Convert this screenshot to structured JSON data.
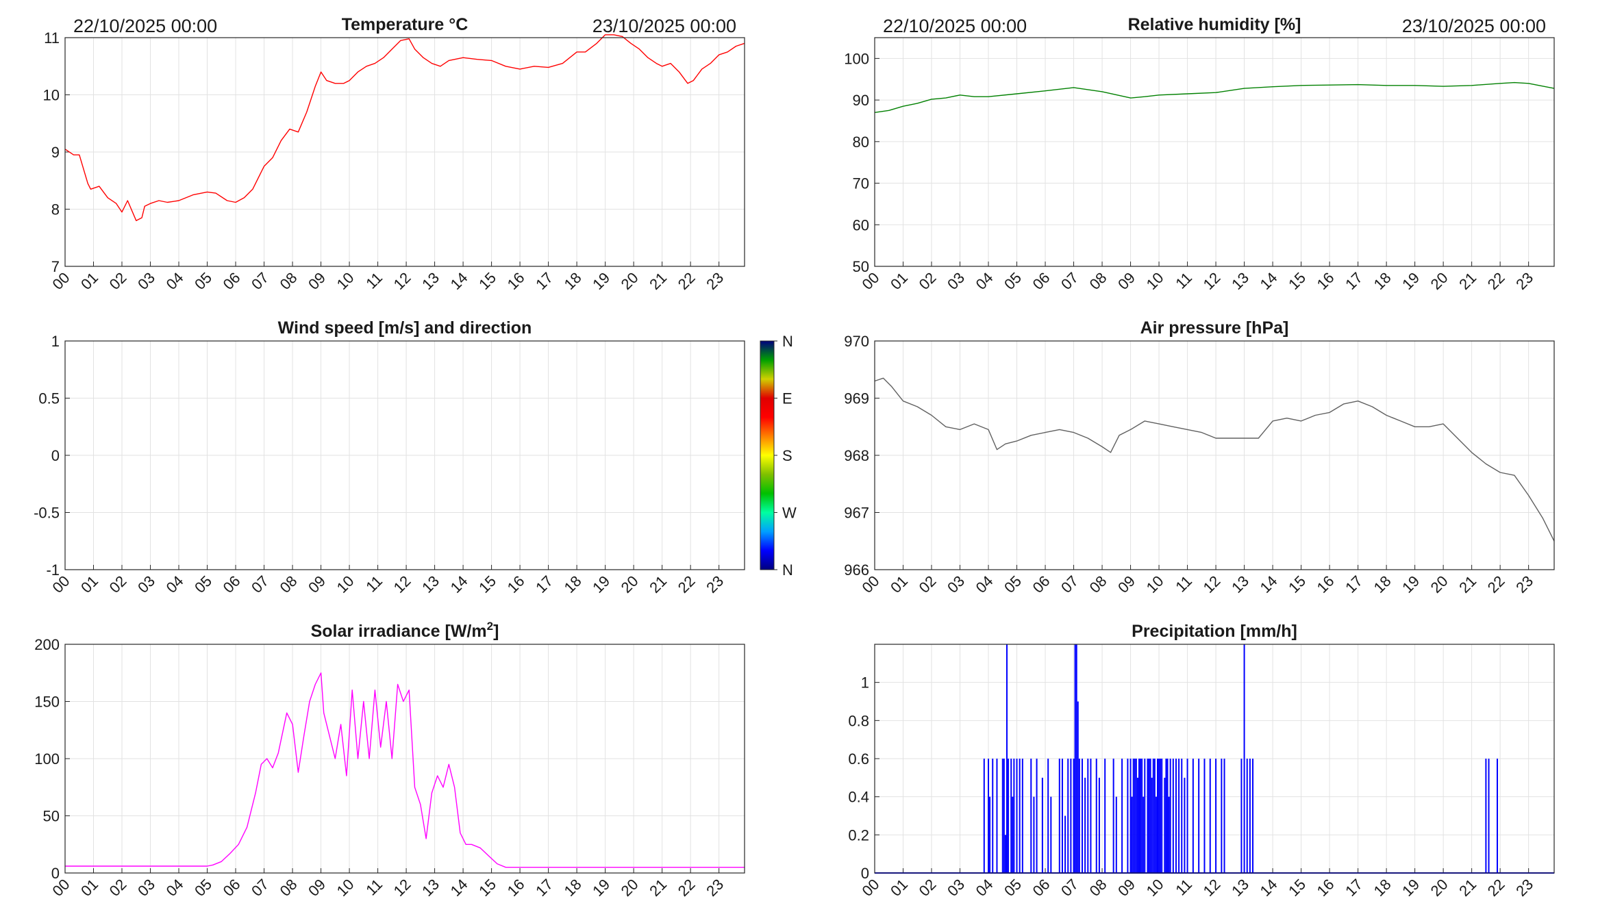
{
  "chart_data": [
    {
      "id": "temperature",
      "type": "line",
      "title": "Temperature °C",
      "date_start": "22/10/2025 00:00",
      "date_end": "23/10/2025 00:00",
      "color": "#ff0000",
      "ylim": [
        7,
        11
      ],
      "yticks": [
        "7",
        "8",
        "9",
        "10",
        "11"
      ],
      "xlim": [
        0,
        23.9
      ],
      "xticks": [
        "00",
        "01",
        "02",
        "03",
        "04",
        "05",
        "06",
        "07",
        "08",
        "09",
        "10",
        "11",
        "12",
        "13",
        "14",
        "15",
        "16",
        "17",
        "18",
        "19",
        "20",
        "21",
        "22",
        "23"
      ],
      "x": [
        0,
        0.3,
        0.5,
        0.8,
        0.9,
        1.2,
        1.5,
        1.8,
        2.0,
        2.2,
        2.5,
        2.7,
        2.8,
        3.0,
        3.3,
        3.6,
        4.0,
        4.5,
        5.0,
        5.3,
        5.7,
        6.0,
        6.3,
        6.6,
        7.0,
        7.3,
        7.6,
        7.9,
        8.2,
        8.5,
        8.8,
        9.0,
        9.2,
        9.5,
        9.8,
        10.0,
        10.3,
        10.6,
        10.9,
        11.2,
        11.5,
        11.8,
        12.1,
        12.3,
        12.6,
        12.9,
        13.2,
        13.5,
        14.0,
        14.5,
        15.0,
        15.5,
        16.0,
        16.5,
        17.0,
        17.5,
        18.0,
        18.3,
        18.7,
        19.0,
        19.3,
        19.6,
        19.9,
        20.2,
        20.5,
        20.8,
        21.0,
        21.3,
        21.6,
        21.9,
        22.1,
        22.4,
        22.7,
        23.0,
        23.3,
        23.6,
        23.9
      ],
      "y": [
        9.05,
        8.95,
        8.95,
        8.45,
        8.35,
        8.4,
        8.2,
        8.1,
        7.95,
        8.15,
        7.8,
        7.85,
        8.05,
        8.1,
        8.15,
        8.12,
        8.15,
        8.25,
        8.3,
        8.28,
        8.15,
        8.12,
        8.2,
        8.35,
        8.75,
        8.9,
        9.2,
        9.4,
        9.35,
        9.7,
        10.15,
        10.4,
        10.25,
        10.2,
        10.2,
        10.25,
        10.4,
        10.5,
        10.55,
        10.65,
        10.8,
        10.95,
        10.98,
        10.8,
        10.65,
        10.55,
        10.5,
        10.6,
        10.65,
        10.62,
        10.6,
        10.5,
        10.45,
        10.5,
        10.48,
        10.55,
        10.75,
        10.75,
        10.9,
        11.05,
        11.05,
        11.02,
        10.9,
        10.8,
        10.65,
        10.55,
        10.5,
        10.55,
        10.4,
        10.2,
        10.25,
        10.45,
        10.55,
        10.7,
        10.75,
        10.85,
        10.9
      ]
    },
    {
      "id": "humidity",
      "type": "line",
      "title": "Relative humidity [%]",
      "date_start": "22/10/2025 00:00",
      "date_end": "23/10/2025 00:00",
      "color": "#008000",
      "ylim": [
        50,
        105
      ],
      "yticks": [
        "50",
        "60",
        "70",
        "80",
        "90",
        "100"
      ],
      "xlim": [
        0,
        23.9
      ],
      "xticks": [
        "00",
        "01",
        "02",
        "03",
        "04",
        "05",
        "06",
        "07",
        "08",
        "09",
        "10",
        "11",
        "12",
        "13",
        "14",
        "15",
        "16",
        "17",
        "18",
        "19",
        "20",
        "21",
        "22",
        "23"
      ],
      "x": [
        0,
        0.5,
        1.0,
        1.5,
        2.0,
        2.5,
        3.0,
        3.5,
        4.0,
        5.0,
        6.0,
        7.0,
        8.0,
        9.0,
        9.5,
        10.0,
        11.0,
        12.0,
        13.0,
        14.0,
        15.0,
        16.0,
        17.0,
        18.0,
        19.0,
        20.0,
        21.0,
        22.0,
        22.5,
        23.0,
        23.9
      ],
      "y": [
        87,
        87.5,
        88.5,
        89.2,
        90.2,
        90.5,
        91.2,
        90.8,
        90.8,
        91.5,
        92.2,
        93,
        92,
        90.5,
        90.8,
        91.2,
        91.5,
        91.8,
        92.8,
        93.2,
        93.5,
        93.6,
        93.7,
        93.5,
        93.5,
        93.3,
        93.5,
        94,
        94.2,
        94,
        92.8
      ]
    },
    {
      "id": "wind",
      "type": "scatter",
      "title": "Wind speed [m/s] and direction",
      "ylim": [
        -1,
        1
      ],
      "yticks": [
        "-1",
        "-0.5",
        "0",
        "0.5",
        "1"
      ],
      "xlim": [
        0,
        23.9
      ],
      "xticks": [
        "00",
        "01",
        "02",
        "03",
        "04",
        "05",
        "06",
        "07",
        "08",
        "09",
        "10",
        "11",
        "12",
        "13",
        "14",
        "15",
        "16",
        "17",
        "18",
        "19",
        "20",
        "21",
        "22",
        "23"
      ],
      "colorbar_labels": [
        "N",
        "W",
        "S",
        "E",
        "N"
      ],
      "colorbar_colors": [
        "#00007f",
        "#0000ff",
        "#00a0ff",
        "#00ffa0",
        "#00c000",
        "#80c000",
        "#ffff00",
        "#ff8000",
        "#ff0000",
        "#e00000",
        "#d0d000",
        "#00a000",
        "#00007f"
      ],
      "x": [],
      "y": []
    },
    {
      "id": "pressure",
      "type": "line",
      "title": "Air pressure [hPa]",
      "color": "#606060",
      "ylim": [
        966,
        970
      ],
      "yticks": [
        "966",
        "967",
        "968",
        "969",
        "970"
      ],
      "xlim": [
        0,
        23.9
      ],
      "xticks": [
        "00",
        "01",
        "02",
        "03",
        "04",
        "05",
        "06",
        "07",
        "08",
        "09",
        "10",
        "11",
        "12",
        "13",
        "14",
        "15",
        "16",
        "17",
        "18",
        "19",
        "20",
        "21",
        "22",
        "23"
      ],
      "x": [
        0,
        0.3,
        0.6,
        1.0,
        1.5,
        2.0,
        2.5,
        3.0,
        3.5,
        4.0,
        4.3,
        4.6,
        5.0,
        5.5,
        6.0,
        6.5,
        7.0,
        7.5,
        8.0,
        8.3,
        8.6,
        9.0,
        9.5,
        10.0,
        10.5,
        11.0,
        11.5,
        12.0,
        12.5,
        13.0,
        13.5,
        14.0,
        14.5,
        15.0,
        15.5,
        16.0,
        16.5,
        17.0,
        17.5,
        18.0,
        18.5,
        19.0,
        19.5,
        20.0,
        20.5,
        21.0,
        21.5,
        22.0,
        22.5,
        23.0,
        23.5,
        23.9
      ],
      "y": [
        969.3,
        969.35,
        969.2,
        968.95,
        968.85,
        968.7,
        968.5,
        968.45,
        968.55,
        968.45,
        968.1,
        968.2,
        968.25,
        968.35,
        968.4,
        968.45,
        968.4,
        968.3,
        968.15,
        968.05,
        968.35,
        968.45,
        968.6,
        968.55,
        968.5,
        968.45,
        968.4,
        968.3,
        968.3,
        968.3,
        968.3,
        968.6,
        968.65,
        968.6,
        968.7,
        968.75,
        968.9,
        968.95,
        968.85,
        968.7,
        968.6,
        968.5,
        968.5,
        968.55,
        968.3,
        968.05,
        967.85,
        967.7,
        967.65,
        967.3,
        966.9,
        966.5
      ]
    },
    {
      "id": "solar",
      "type": "line",
      "title": "Solar irradiance [W/m",
      "title_sup": "2",
      "title_end": "]",
      "color": "#ff00ff",
      "ylim": [
        0,
        200
      ],
      "yticks": [
        "0",
        "50",
        "100",
        "150",
        "200"
      ],
      "xlim": [
        0,
        23.9
      ],
      "xticks": [
        "00",
        "01",
        "02",
        "03",
        "04",
        "05",
        "06",
        "07",
        "08",
        "09",
        "10",
        "11",
        "12",
        "13",
        "14",
        "15",
        "16",
        "17",
        "18",
        "19",
        "20",
        "21",
        "22",
        "23"
      ],
      "x": [
        0,
        1,
        2,
        3,
        4,
        5,
        5.2,
        5.5,
        5.8,
        6.1,
        6.4,
        6.7,
        6.9,
        7.1,
        7.3,
        7.5,
        7.8,
        8.0,
        8.2,
        8.4,
        8.6,
        8.8,
        9.0,
        9.1,
        9.3,
        9.5,
        9.7,
        9.9,
        10.1,
        10.3,
        10.5,
        10.7,
        10.9,
        11.1,
        11.3,
        11.5,
        11.7,
        11.9,
        12.1,
        12.3,
        12.5,
        12.7,
        12.9,
        13.1,
        13.3,
        13.5,
        13.7,
        13.9,
        14.1,
        14.3,
        14.6,
        14.9,
        15.2,
        15.5,
        15.8,
        16.0,
        17,
        18,
        19,
        20,
        21,
        22,
        23,
        23.9
      ],
      "y": [
        6,
        6,
        6,
        6,
        6,
        6,
        7,
        10,
        17,
        25,
        40,
        70,
        95,
        100,
        92,
        105,
        140,
        130,
        88,
        120,
        150,
        165,
        175,
        140,
        120,
        100,
        130,
        85,
        160,
        100,
        150,
        100,
        160,
        110,
        150,
        100,
        165,
        150,
        160,
        75,
        60,
        30,
        70,
        85,
        75,
        95,
        75,
        35,
        25,
        25,
        22,
        15,
        8,
        5,
        5,
        5,
        5,
        5,
        5,
        5,
        5,
        5,
        5,
        5
      ]
    },
    {
      "id": "precipitation",
      "type": "bar",
      "title": "Precipitation [mm/h]",
      "color": "#0000ff",
      "ylim": [
        0,
        1.2
      ],
      "yticks": [
        "0",
        "0.2",
        "0.4",
        "0.6",
        "0.8",
        "1"
      ],
      "xlim": [
        0,
        23.9
      ],
      "xticks": [
        "00",
        "01",
        "02",
        "03",
        "04",
        "05",
        "06",
        "07",
        "08",
        "09",
        "10",
        "11",
        "12",
        "13",
        "14",
        "15",
        "16",
        "17",
        "18",
        "19",
        "20",
        "21",
        "22",
        "23"
      ],
      "x": [
        3.85,
        4.0,
        4.05,
        4.15,
        4.3,
        4.5,
        4.55,
        4.6,
        4.65,
        4.7,
        4.8,
        4.85,
        4.9,
        5.0,
        5.1,
        5.2,
        5.5,
        5.6,
        5.7,
        5.9,
        6.1,
        6.2,
        6.5,
        6.6,
        6.7,
        6.8,
        6.9,
        7.0,
        7.05,
        7.1,
        7.15,
        7.2,
        7.3,
        7.4,
        7.5,
        7.6,
        7.8,
        7.9,
        8.1,
        8.4,
        8.5,
        8.7,
        8.9,
        9.0,
        9.05,
        9.1,
        9.15,
        9.2,
        9.25,
        9.3,
        9.35,
        9.4,
        9.45,
        9.5,
        9.6,
        9.65,
        9.7,
        9.75,
        9.8,
        9.85,
        9.9,
        9.95,
        10.0,
        10.05,
        10.1,
        10.2,
        10.25,
        10.3,
        10.35,
        10.4,
        10.5,
        10.6,
        10.7,
        10.8,
        10.9,
        11.0,
        11.2,
        11.4,
        11.6,
        11.8,
        12.0,
        12.2,
        12.3,
        12.9,
        13.0,
        13.1,
        13.2,
        13.3,
        21.5,
        21.6,
        21.9
      ],
      "values": [
        0.6,
        0.6,
        0.4,
        0.6,
        0.6,
        0.6,
        0.6,
        0.2,
        1.2,
        0.6,
        0.6,
        0.4,
        0.6,
        0.6,
        0.6,
        0.6,
        0.6,
        0.4,
        0.6,
        0.5,
        0.6,
        0.4,
        0.6,
        0.6,
        0.3,
        0.6,
        0.6,
        0.6,
        1.2,
        1.2,
        0.9,
        0.6,
        0.6,
        0.5,
        0.6,
        0.6,
        0.6,
        0.5,
        0.6,
        0.6,
        0.4,
        0.6,
        0.6,
        0.6,
        0.4,
        0.6,
        0.6,
        0.6,
        0.5,
        0.6,
        0.6,
        0.6,
        0.4,
        0.6,
        0.6,
        0.6,
        0.6,
        0.5,
        0.6,
        0.6,
        0.4,
        0.6,
        0.6,
        0.6,
        0.6,
        0.5,
        0.6,
        0.6,
        0.4,
        0.6,
        0.6,
        0.6,
        0.6,
        0.6,
        0.5,
        0.6,
        0.6,
        0.6,
        0.6,
        0.6,
        0.6,
        0.6,
        0.6,
        0.6,
        1.2,
        0.6,
        0.6,
        0.6,
        0.6,
        0.6,
        0.6
      ]
    }
  ]
}
